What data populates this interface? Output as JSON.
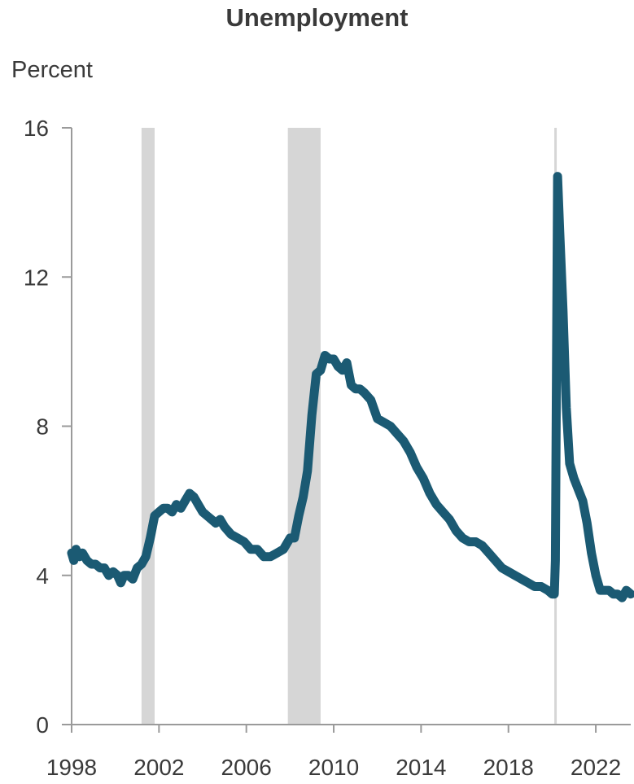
{
  "chart_data": {
    "type": "line",
    "title": "Unemployment",
    "ylabel": "Percent",
    "xlabel": "",
    "xlim": [
      1998.0,
      2023.6
    ],
    "ylim": [
      0,
      16
    ],
    "x_ticks": [
      1998,
      2002,
      2006,
      2010,
      2014,
      2018,
      2022
    ],
    "y_ticks": [
      0,
      4,
      8,
      12,
      16
    ],
    "grid": false,
    "shaded_periods": [
      {
        "start": 2001.2,
        "end": 2001.8
      },
      {
        "start": 2007.9,
        "end": 2009.4
      },
      {
        "start": 2020.1,
        "end": 2020.2
      }
    ],
    "series": [
      {
        "color": "#1b5a73",
        "x": [
          1998.0,
          1998.1,
          1998.2,
          1998.35,
          1998.5,
          1998.7,
          1998.9,
          1999.1,
          1999.3,
          1999.5,
          1999.7,
          1999.9,
          2000.1,
          2000.25,
          2000.4,
          2000.6,
          2000.8,
          2001.0,
          2001.2,
          2001.4,
          2001.6,
          2001.8,
          2002.0,
          2002.2,
          2002.4,
          2002.6,
          2002.8,
          2003.0,
          2003.2,
          2003.4,
          2003.6,
          2003.8,
          2004.0,
          2004.2,
          2004.4,
          2004.6,
          2004.8,
          2005.0,
          2005.3,
          2005.6,
          2005.9,
          2006.2,
          2006.5,
          2006.8,
          2007.1,
          2007.4,
          2007.7,
          2008.0,
          2008.2,
          2008.4,
          2008.6,
          2008.8,
          2009.0,
          2009.2,
          2009.4,
          2009.6,
          2009.8,
          2010.0,
          2010.2,
          2010.4,
          2010.6,
          2010.8,
          2011.0,
          2011.2,
          2011.4,
          2011.7,
          2012.0,
          2012.3,
          2012.6,
          2012.9,
          2013.2,
          2013.5,
          2013.8,
          2014.1,
          2014.4,
          2014.7,
          2015.0,
          2015.3,
          2015.6,
          2015.9,
          2016.2,
          2016.5,
          2016.8,
          2017.1,
          2017.4,
          2017.7,
          2018.0,
          2018.3,
          2018.6,
          2018.9,
          2019.2,
          2019.5,
          2019.8,
          2020.0,
          2020.1,
          2020.15,
          2020.25,
          2020.35,
          2020.5,
          2020.65,
          2020.8,
          2021.0,
          2021.2,
          2021.4,
          2021.6,
          2021.8,
          2022.0,
          2022.2,
          2022.4,
          2022.6,
          2022.8,
          2023.0,
          2023.2,
          2023.4,
          2023.6
        ],
        "y": [
          4.6,
          4.4,
          4.7,
          4.5,
          4.6,
          4.4,
          4.3,
          4.3,
          4.2,
          4.2,
          4.0,
          4.1,
          4.0,
          3.8,
          4.0,
          4.0,
          3.9,
          4.2,
          4.3,
          4.5,
          5.0,
          5.6,
          5.7,
          5.8,
          5.8,
          5.7,
          5.9,
          5.8,
          6.0,
          6.2,
          6.1,
          5.9,
          5.7,
          5.6,
          5.5,
          5.4,
          5.5,
          5.3,
          5.1,
          5.0,
          4.9,
          4.7,
          4.7,
          4.5,
          4.5,
          4.6,
          4.7,
          5.0,
          5.0,
          5.6,
          6.1,
          6.8,
          8.3,
          9.4,
          9.5,
          9.9,
          9.8,
          9.8,
          9.6,
          9.5,
          9.7,
          9.1,
          9.0,
          9.0,
          8.9,
          8.7,
          8.2,
          8.1,
          8.0,
          7.8,
          7.6,
          7.3,
          6.9,
          6.6,
          6.2,
          5.9,
          5.7,
          5.5,
          5.2,
          5.0,
          4.9,
          4.9,
          4.8,
          4.6,
          4.4,
          4.2,
          4.1,
          4.0,
          3.9,
          3.8,
          3.7,
          3.7,
          3.6,
          3.5,
          3.5,
          4.4,
          14.7,
          13.2,
          11.1,
          8.5,
          7.0,
          6.6,
          6.3,
          6.0,
          5.4,
          4.6,
          4.0,
          3.6,
          3.6,
          3.6,
          3.5,
          3.5,
          3.4,
          3.6,
          3.5
        ]
      }
    ]
  },
  "colors": {
    "line": "#1b5a73",
    "recession_shade": "#d6d6d6",
    "axis": "#9a9a9a",
    "text": "#3a3a3a"
  }
}
